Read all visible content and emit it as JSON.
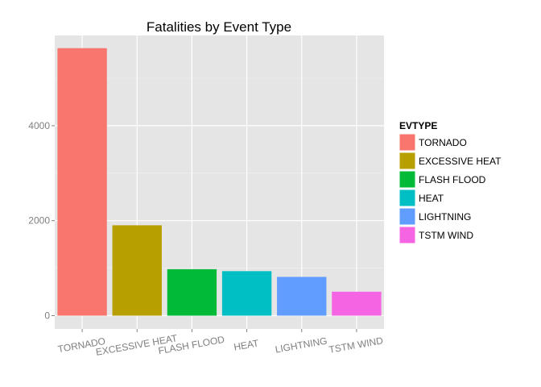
{
  "chart_data": {
    "type": "bar",
    "title": "Fatalities by Event Type",
    "xlabel": "",
    "ylabel": "",
    "categories": [
      "TORNADO",
      "EXCESSIVE HEAT",
      "FLASH FLOOD",
      "HEAT",
      "LIGHTNING",
      "TSTM WIND"
    ],
    "values": [
      5633,
      1903,
      978,
      937,
      816,
      504
    ],
    "colors": [
      "#F8766D",
      "#B79F00",
      "#00BA38",
      "#00BFC4",
      "#619CFF",
      "#F564E3"
    ],
    "y_ticks": [
      0,
      2000,
      4000
    ],
    "ylim": [
      -280,
      5900
    ],
    "grid": true,
    "background": "#E5E5E5",
    "legend": {
      "title": "EVTYPE",
      "placement": "right",
      "entries": [
        "TORNADO",
        "EXCESSIVE HEAT",
        "FLASH FLOOD",
        "HEAT",
        "LIGHTNING",
        "TSTM WIND"
      ]
    }
  }
}
